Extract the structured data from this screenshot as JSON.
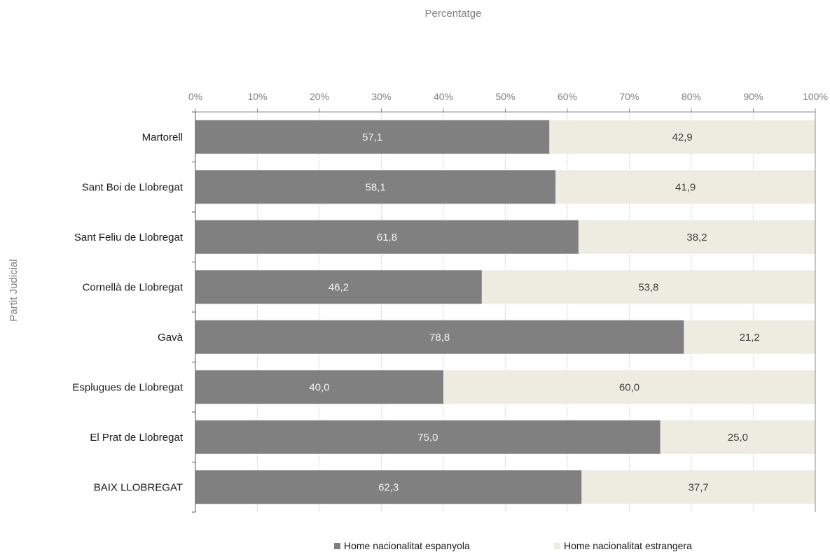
{
  "chart_data": {
    "type": "bar",
    "orientation": "horizontal",
    "stacked": true,
    "xlabel": "Percentatge",
    "ylabel": "Partit Judicial",
    "xlim": [
      0,
      100
    ],
    "x_ticks": [
      "0%",
      "10%",
      "20%",
      "30%",
      "40%",
      "50%",
      "60%",
      "70%",
      "80%",
      "90%",
      "100%"
    ],
    "grid": true,
    "legend_position": "bottom",
    "categories": [
      "Martorell",
      "Sant Boi de Llobregat",
      "Sant Feliu de Llobregat",
      "Cornellà de Llobregat",
      "Gavà",
      "Esplugues de Llobregat",
      "El Prat de Llobregat",
      "BAIX LLOBREGAT"
    ],
    "series": [
      {
        "name": "Home nacionalitat espanyola",
        "color": "#808080",
        "values": [
          57.1,
          58.1,
          61.8,
          46.2,
          78.8,
          40.0,
          75.0,
          62.3
        ],
        "labels": [
          "57,1",
          "58,1",
          "61,8",
          "46,2",
          "78,8",
          "40,0",
          "75,0",
          "62,3"
        ]
      },
      {
        "name": "Home nacionalitat estrangera",
        "color": "#eeece1",
        "values": [
          42.9,
          41.9,
          38.2,
          53.8,
          21.2,
          60.0,
          25.0,
          37.7
        ],
        "labels": [
          "42,9",
          "41,9",
          "38,2",
          "53,8",
          "21,2",
          "60,0",
          "25,0",
          "37,7"
        ]
      }
    ]
  }
}
